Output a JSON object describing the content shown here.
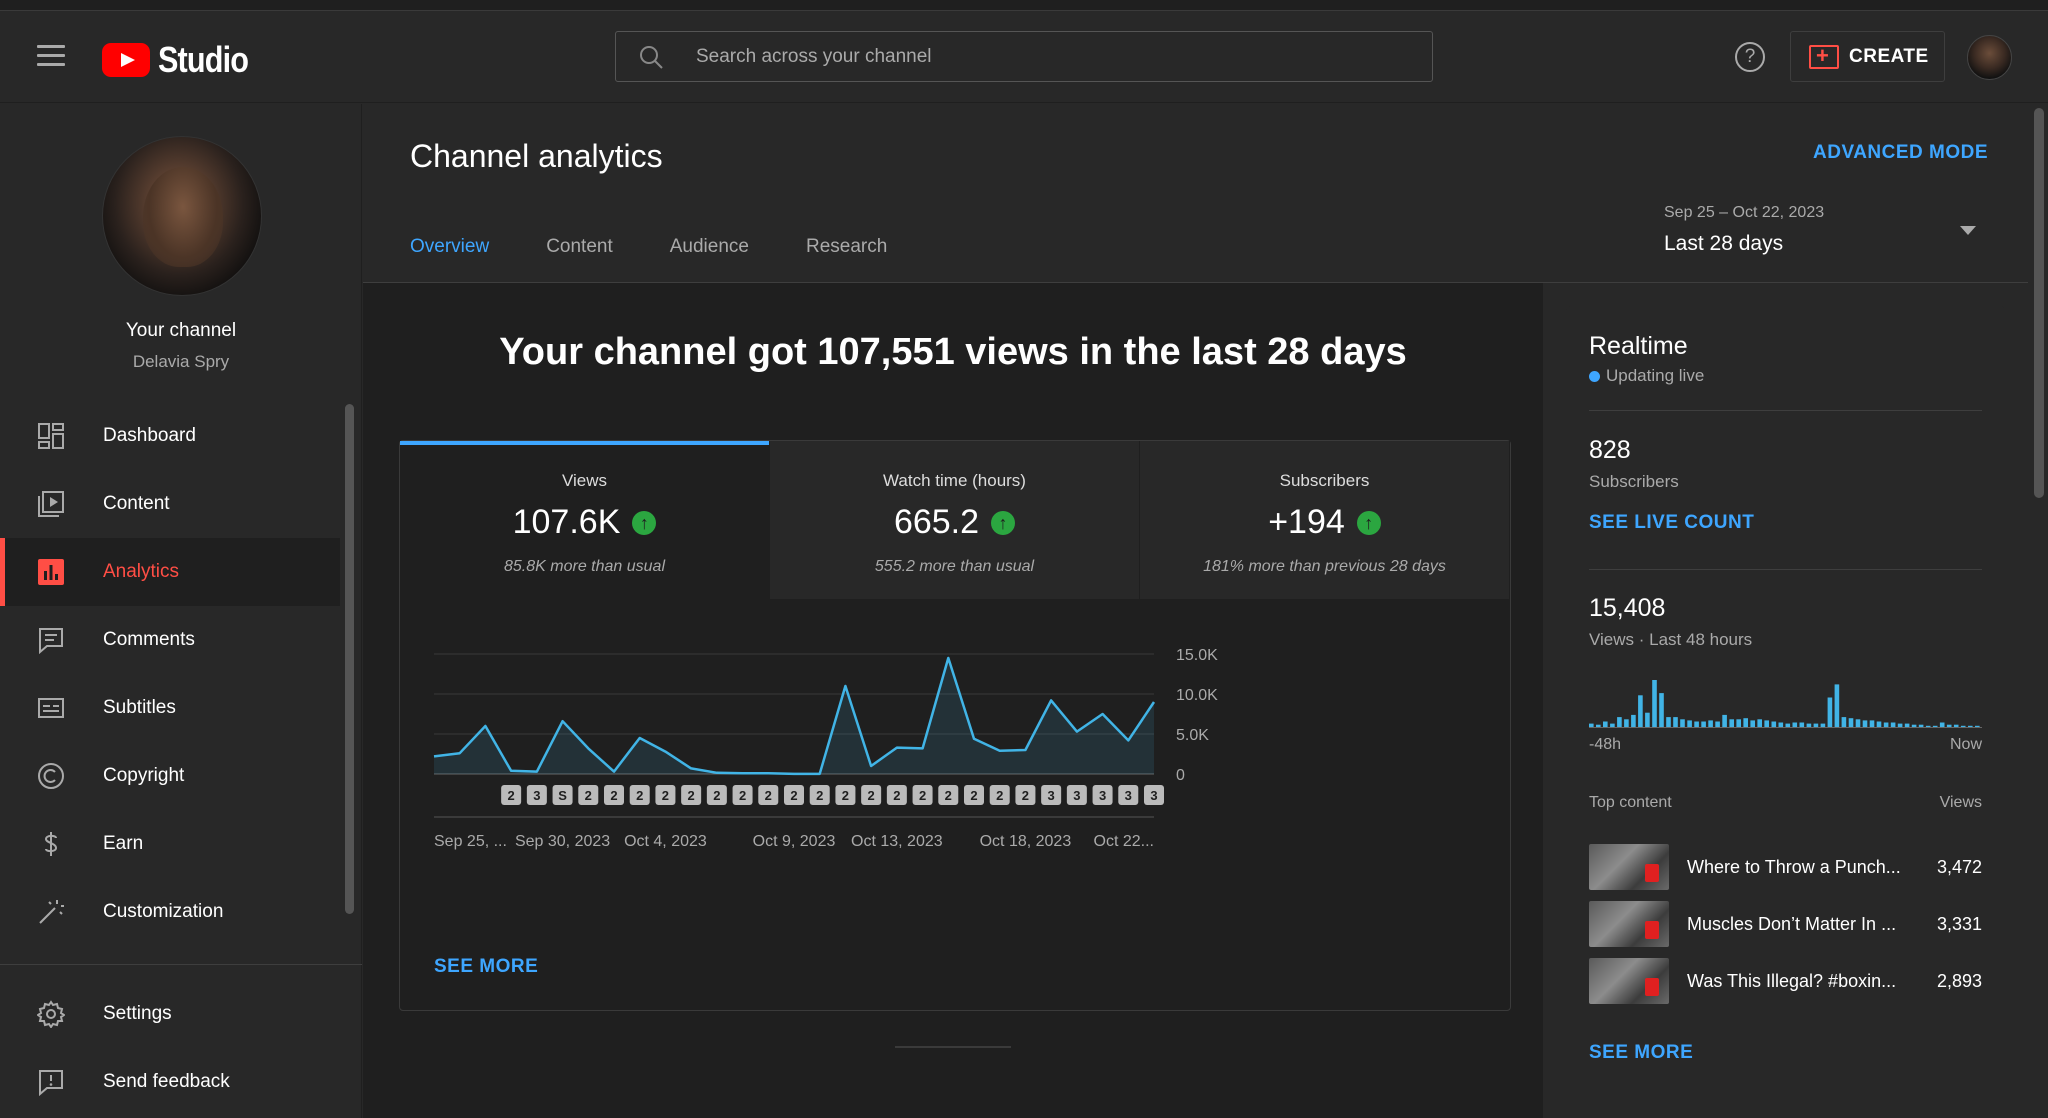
{
  "header": {
    "logo_text": "Studio",
    "search_placeholder": "Search across your channel",
    "help_label": "?",
    "create_label": "CREATE"
  },
  "sidebar": {
    "your_channel": "Your channel",
    "channel_name": "Delavia Spry",
    "items": [
      {
        "label": "Dashboard",
        "icon": "dashboard-icon"
      },
      {
        "label": "Content",
        "icon": "content-icon"
      },
      {
        "label": "Analytics",
        "icon": "analytics-icon",
        "active": true
      },
      {
        "label": "Comments",
        "icon": "comments-icon"
      },
      {
        "label": "Subtitles",
        "icon": "subtitles-icon"
      },
      {
        "label": "Copyright",
        "icon": "copyright-icon"
      },
      {
        "label": "Earn",
        "icon": "earn-icon"
      },
      {
        "label": "Customization",
        "icon": "customization-icon"
      }
    ],
    "bottom_items": [
      {
        "label": "Settings",
        "icon": "gear-icon"
      },
      {
        "label": "Send feedback",
        "icon": "feedback-icon"
      }
    ]
  },
  "main": {
    "title": "Channel analytics",
    "advanced_mode": "ADVANCED MODE",
    "tabs": [
      "Overview",
      "Content",
      "Audience",
      "Research"
    ],
    "active_tab": "Overview",
    "date_range": {
      "sub": "Sep 25 – Oct 22, 2023",
      "main": "Last 28 days"
    },
    "headline": "Your channel got 107,551 views in the last 28 days",
    "metrics": [
      {
        "label": "Views",
        "value": "107.6K",
        "sub": "85.8K more than usual"
      },
      {
        "label": "Watch time (hours)",
        "value": "665.2",
        "sub": "555.2 more than usual"
      },
      {
        "label": "Subscribers",
        "value": "+194",
        "sub": "181% more than previous 28 days"
      }
    ],
    "see_more": "SEE MORE"
  },
  "chart_data": {
    "type": "area",
    "title": "",
    "xlabel": "",
    "ylabel": "",
    "ylim": [
      0,
      15000
    ],
    "y_ticks": [
      "15.0K",
      "10.0K",
      "5.0K",
      "0"
    ],
    "y_tick_values": [
      15000,
      10000,
      5000,
      0
    ],
    "x_tick_labels": [
      "Sep 25, ...",
      "Sep 30, 2023",
      "Oct 4, 2023",
      "Oct 9, 2023",
      "Oct 13, 2023",
      "Oct 18, 2023",
      "Oct 22..."
    ],
    "x_tick_days": [
      0,
      5,
      9,
      14,
      18,
      23,
      27
    ],
    "series": [
      {
        "name": "Views",
        "values": [
          2200,
          2600,
          6000,
          400,
          300,
          6600,
          3200,
          300,
          4500,
          2800,
          700,
          150,
          100,
          100,
          14,
          14,
          11000,
          1000,
          3300,
          3200,
          14500,
          4400,
          2900,
          3000,
          9200,
          5300,
          7500,
          4200,
          9000
        ]
      }
    ],
    "markers": [
      "2",
      "3",
      "S",
      "2",
      "2",
      "2",
      "2",
      "2",
      "2",
      "2",
      "2",
      "2",
      "2",
      "2",
      "2",
      "2",
      "2",
      "2",
      "2",
      "2",
      "2",
      "3",
      "3",
      "3",
      "3",
      "3"
    ]
  },
  "realtime": {
    "title": "Realtime",
    "live": "Updating live",
    "subscribers_value": "828",
    "subscribers_label": "Subscribers",
    "see_live_count": "SEE LIVE COUNT",
    "views_value": "15,408",
    "views_label": "Views · Last 48 hours",
    "axis_left": "-48h",
    "axis_right": "Now",
    "hourly_views": [
      4,
      3,
      6,
      4,
      10,
      8,
      12,
      30,
      14,
      44,
      32,
      10,
      10,
      8,
      7,
      6,
      6,
      7,
      6,
      12,
      8,
      8,
      9,
      7,
      8,
      7,
      6,
      5,
      4,
      5,
      5,
      4,
      4,
      4,
      28,
      40,
      10,
      9,
      8,
      7,
      7,
      6,
      5,
      5,
      4,
      4,
      3,
      3,
      2,
      2,
      5,
      3,
      3,
      2,
      2,
      2
    ],
    "top_content_label": "Top content",
    "views_col_label": "Views",
    "top_content": [
      {
        "title": "Where to Throw a Punch...",
        "views": "3,472"
      },
      {
        "title": "Muscles Don’t Matter In ...",
        "views": "3,331"
      },
      {
        "title": "Was This Illegal? #boxin...",
        "views": "2,893"
      }
    ],
    "see_more": "SEE MORE"
  },
  "colors": {
    "accent": "#3ea6ff",
    "active_red": "#ff4e45",
    "up_green": "#2ba640",
    "chart_line": "#41b4e6"
  }
}
